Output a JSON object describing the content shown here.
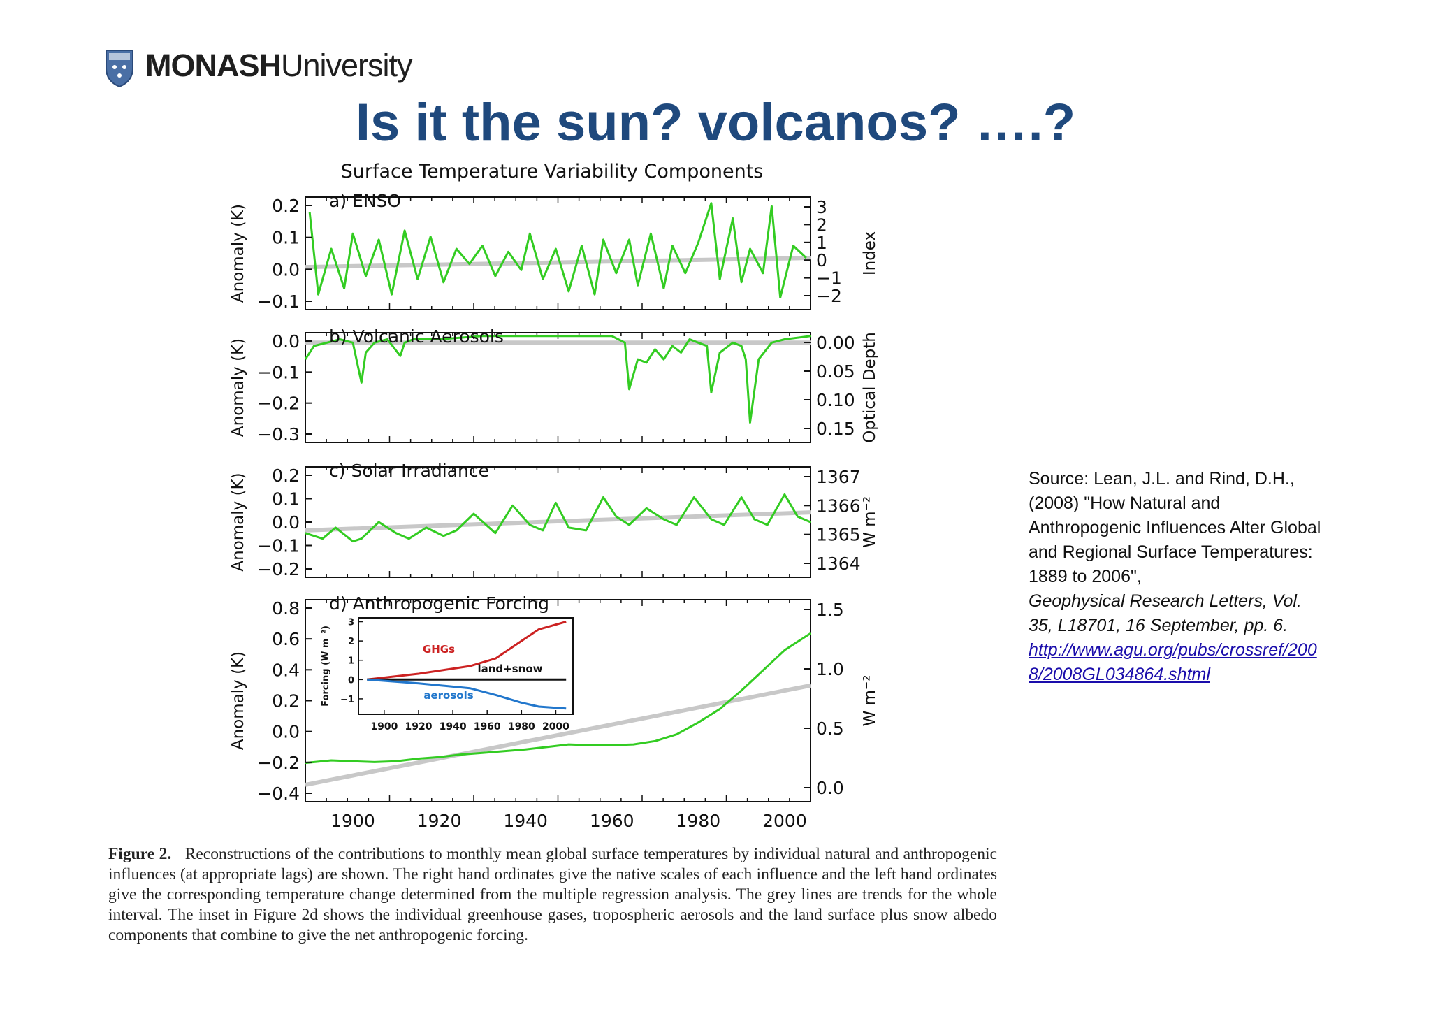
{
  "logo": {
    "brand_bold": "MONASH",
    "brand_light": "University"
  },
  "slide_title": "Is it the sun? volcanos? ….?",
  "colors": {
    "title": "#1f497d",
    "series": "#33cc22",
    "trend": "#c8c8c8",
    "ghg": "#cc2222",
    "aerosol": "#2277cc"
  },
  "source": {
    "text": "Source: Lean, J.L. and Rind, D.H., (2008) \"How Natural and Anthropogenic Influences Alter Global and Regional Surface Temperatures: 1889 to 2006\",",
    "journal": "Geophysical Research Letters, Vol. 35, L18701, 16 September, pp. 6.",
    "url": "http://www.agu.org/pubs/crossref/2008/2008GL034864.shtml"
  },
  "caption": {
    "label": "Figure 2.",
    "text": "Reconstructions of the contributions to monthly mean global surface temperatures by individual natural and anthropogenic influences (at appropriate lags) are shown. The right hand ordinates give the native scales of each influence and the left hand ordinates give the corresponding temperature change determined from the multiple regression analysis. The grey lines are trends for the whole interval. The inset in Figure 2d shows the individual greenhouse gases, tropospheric aerosols and the land surface plus snow albedo components that combine to give the net anthropogenic forcing."
  },
  "chart_data": [
    {
      "type": "line",
      "figure_title": "Surface Temperature Variability Components",
      "title": "a) ENSO",
      "ylabel": "Anomaly (K)",
      "right_label": "Index",
      "xlim": [
        1889,
        2006
      ],
      "ylim": [
        -0.15,
        0.22
      ],
      "left_ticks": [
        "0.2",
        "0.1",
        "0.0",
        "−0.1"
      ],
      "right_ticks": [
        "3",
        "2",
        "1",
        "0",
        "−1",
        "−2"
      ],
      "x": [
        1890,
        1892,
        1895,
        1898,
        1900,
        1903,
        1906,
        1909,
        1912,
        1915,
        1918,
        1921,
        1924,
        1927,
        1930,
        1933,
        1936,
        1939,
        1941,
        1944,
        1947,
        1950,
        1953,
        1956,
        1958,
        1961,
        1964,
        1966,
        1969,
        1972,
        1974,
        1977,
        1980,
        1983,
        1985,
        1988,
        1990,
        1992,
        1995,
        1997,
        1999,
        2002,
        2005
      ],
      "y": [
        0.17,
        -0.1,
        0.05,
        -0.08,
        0.1,
        -0.04,
        0.08,
        -0.1,
        0.11,
        -0.05,
        0.09,
        -0.06,
        0.05,
        0.0,
        0.06,
        -0.04,
        0.04,
        -0.02,
        0.1,
        -0.05,
        0.05,
        -0.09,
        0.06,
        -0.1,
        0.08,
        -0.03,
        0.08,
        -0.07,
        0.1,
        -0.08,
        0.06,
        -0.03,
        0.07,
        0.2,
        -0.05,
        0.15,
        -0.06,
        0.05,
        -0.03,
        0.19,
        -0.11,
        0.06,
        0.02
      ],
      "trend": [
        [
          1889,
          -0.01
        ],
        [
          2006,
          0.02
        ]
      ]
    },
    {
      "type": "line",
      "title": "b) Volcanic Aerosols",
      "ylabel": "Anomaly (K)",
      "right_label": "Optical Depth",
      "xlim": [
        1889,
        2006
      ],
      "ylim": [
        -0.3,
        0.03
      ],
      "left_ticks": [
        "0.0",
        "−0.1",
        "−0.2",
        "−0.3"
      ],
      "right_ticks": [
        "0.00",
        "0.05",
        "0.10",
        "0.15"
      ],
      "x": [
        1889,
        1891,
        1894,
        1897,
        1900,
        1902,
        1903,
        1905,
        1908,
        1911,
        1912,
        1914,
        1920,
        1930,
        1940,
        1950,
        1960,
        1963,
        1964,
        1966,
        1968,
        1970,
        1972,
        1974,
        1976,
        1978,
        1980,
        1982,
        1983,
        1985,
        1988,
        1990,
        1991,
        1992,
        1994,
        1997,
        2000,
        2006
      ],
      "y": [
        -0.05,
        -0.01,
        0.0,
        0.01,
        0.0,
        -0.12,
        -0.03,
        0.0,
        0.01,
        -0.04,
        0.0,
        0.01,
        0.01,
        0.02,
        0.02,
        0.02,
        0.02,
        0.0,
        -0.14,
        -0.05,
        -0.06,
        -0.02,
        -0.05,
        -0.01,
        -0.03,
        0.01,
        0.0,
        -0.01,
        -0.15,
        -0.03,
        0.0,
        -0.01,
        -0.05,
        -0.24,
        -0.05,
        0.0,
        0.01,
        0.02
      ],
      "trend": [
        [
          1889,
          0.0
        ],
        [
          2006,
          0.0
        ]
      ]
    },
    {
      "type": "line",
      "title": "c) Solar Irradiance",
      "ylabel": "Anomaly (K)",
      "right_label": "W m⁻²",
      "xlim": [
        1889,
        2006
      ],
      "ylim": [
        -0.2,
        0.2
      ],
      "left_ticks": [
        "0.2",
        "0.1",
        "0.0",
        "−0.1",
        "−0.2"
      ],
      "right_ticks": [
        "1367",
        "1366",
        "1365",
        "1364"
      ],
      "x": [
        1889,
        1893,
        1896,
        1900,
        1902,
        1906,
        1910,
        1913,
        1917,
        1921,
        1924,
        1928,
        1933,
        1937,
        1941,
        1944,
        1947,
        1950,
        1954,
        1958,
        1961,
        1964,
        1968,
        1972,
        1975,
        1979,
        1983,
        1986,
        1990,
        1993,
        1996,
        2000,
        2003,
        2006
      ],
      "y": [
        -0.04,
        -0.06,
        -0.02,
        -0.07,
        -0.06,
        0.0,
        -0.04,
        -0.06,
        -0.02,
        -0.05,
        -0.03,
        0.03,
        -0.04,
        0.06,
        -0.01,
        -0.03,
        0.07,
        -0.02,
        -0.03,
        0.09,
        0.02,
        -0.01,
        0.05,
        0.01,
        -0.01,
        0.09,
        0.01,
        -0.01,
        0.09,
        0.01,
        -0.01,
        0.1,
        0.02,
        0.0
      ],
      "trend": [
        [
          1889,
          -0.03
        ],
        [
          2006,
          0.035
        ]
      ]
    },
    {
      "type": "line",
      "title": "d) Anthropogenic Forcing",
      "ylabel": "Anomaly (K)",
      "right_label": "W m⁻²",
      "xlim": [
        1889,
        2006
      ],
      "ylim": [
        -0.4,
        0.8
      ],
      "left_ticks": [
        "0.8",
        "0.6",
        "0.4",
        "0.2",
        "0.0",
        "−0.2",
        "−0.4"
      ],
      "right_ticks": [
        "1.5",
        "1.0",
        "0.5",
        "0.0"
      ],
      "x_ticks": [
        "1900",
        "1920",
        "1940",
        "1960",
        "1980",
        "2000"
      ],
      "x": [
        1889,
        1895,
        1900,
        1905,
        1910,
        1915,
        1920,
        1925,
        1930,
        1935,
        1940,
        1945,
        1950,
        1955,
        1960,
        1965,
        1970,
        1975,
        1980,
        1985,
        1990,
        1995,
        2000,
        2006
      ],
      "y": [
        -0.17,
        -0.155,
        -0.16,
        -0.165,
        -0.16,
        -0.145,
        -0.135,
        -0.12,
        -0.11,
        -0.1,
        -0.09,
        -0.075,
        -0.06,
        -0.065,
        -0.065,
        -0.06,
        -0.04,
        0.0,
        0.07,
        0.15,
        0.26,
        0.38,
        0.5,
        0.6
      ],
      "trend": [
        [
          1889,
          -0.3
        ],
        [
          2006,
          0.29
        ]
      ],
      "inset": {
        "ylabel": "Forcing (W m⁻²)",
        "xlim": [
          1885,
          2010
        ],
        "ylim": [
          -1.8,
          3.2
        ],
        "y_ticks": [
          "3",
          "2",
          "1",
          "0",
          "−1"
        ],
        "x_ticks": [
          "1900",
          "1920",
          "1940",
          "1960",
          "1980",
          "2000"
        ],
        "series": [
          {
            "name": "GHGs",
            "x": [
              1890,
              1920,
              1950,
              1965,
              1980,
              1990,
              2006
            ],
            "y": [
              0.0,
              0.3,
              0.7,
              1.1,
              2.0,
              2.6,
              3.0
            ]
          },
          {
            "name": "land+snow",
            "x": [
              1890,
              2006
            ],
            "y": [
              0.0,
              0.0
            ]
          },
          {
            "name": "aerosols",
            "x": [
              1890,
              1920,
              1950,
              1965,
              1980,
              1990,
              2006
            ],
            "y": [
              0.0,
              -0.2,
              -0.45,
              -0.8,
              -1.2,
              -1.4,
              -1.5
            ]
          }
        ]
      }
    }
  ]
}
